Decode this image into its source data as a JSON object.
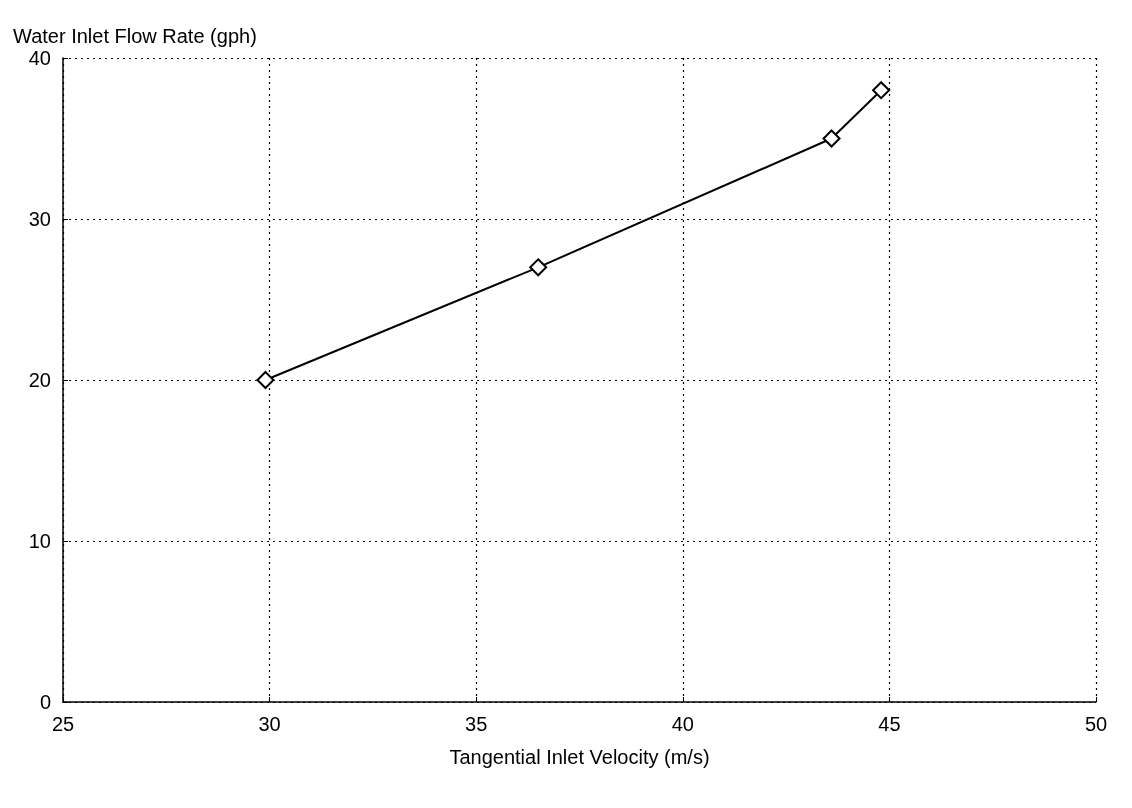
{
  "chart_data": {
    "type": "line",
    "xlabel": "Tangential Inlet Velocity (m/s)",
    "ylabel": "Water Inlet Flow Rate (gph)",
    "x": [
      29.9,
      36.5,
      43.6,
      44.8
    ],
    "series": [
      {
        "color": "#000000",
        "values": [
          20,
          27,
          35,
          38
        ]
      }
    ],
    "xlim": [
      25,
      50
    ],
    "xticks": [
      25,
      30,
      35,
      40,
      45,
      50
    ],
    "ylim": [
      0,
      40
    ],
    "yticks": [
      0,
      10,
      20,
      30,
      40
    ],
    "grid": true,
    "marker": "diamond",
    "line_style": "solid"
  }
}
